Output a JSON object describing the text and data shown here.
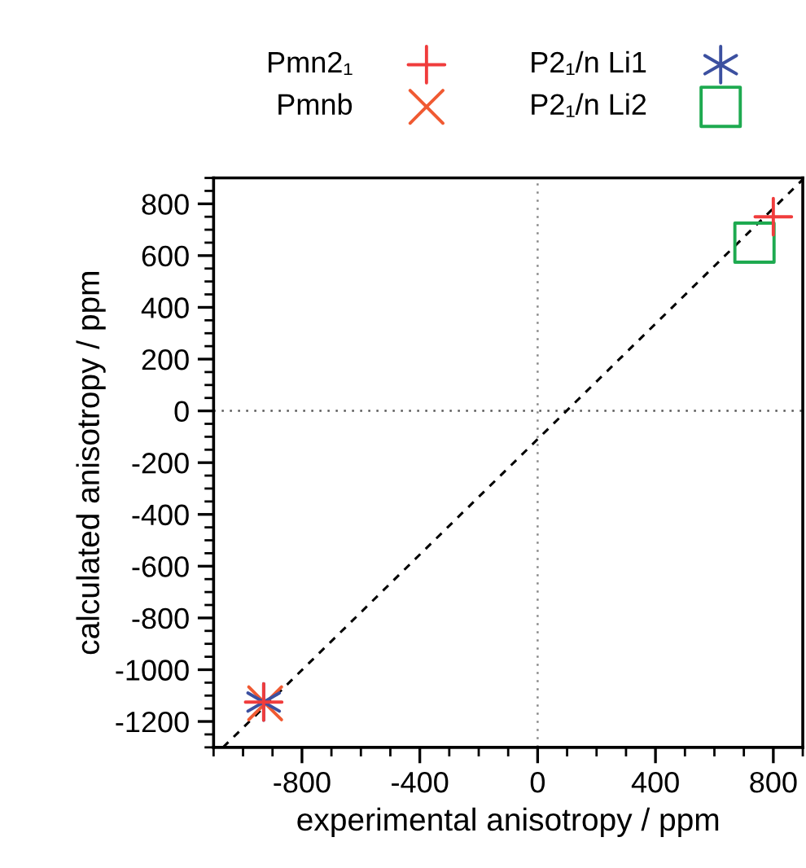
{
  "chart_data": {
    "type": "scatter",
    "xlabel": "experimental anisotropy / ppm",
    "ylabel": "calculated anisotropy / ppm",
    "xlim": [
      -1100,
      900
    ],
    "ylim": [
      -1300,
      900
    ],
    "xticks": [
      -800,
      -400,
      0,
      400,
      800
    ],
    "yticks": [
      -1200,
      -1000,
      -800,
      -600,
      -400,
      -200,
      0,
      200,
      400,
      600,
      800
    ],
    "grid": false,
    "legend": "top",
    "series": [
      {
        "name": "Pmn2₁",
        "color": "#f03c3c",
        "marker": "plus",
        "x": [
          800,
          -930
        ],
        "values": [
          750,
          -1125
        ]
      },
      {
        "name": "Pmnb",
        "color": "#f05a32",
        "marker": "cross",
        "x": [
          -925
        ],
        "values": [
          -1130
        ]
      },
      {
        "name": "P2₁/n Li1",
        "color": "#3c50a0",
        "x": [
          -930
        ],
        "values": [
          -1125
        ]
      },
      {
        "name": "P2₁/n Li2",
        "color": "#1eaa50",
        "marker": "square",
        "x": [
          736
        ],
        "values": [
          650
        ]
      },
      {
        "type": "line",
        "color": "#000000",
        "line_style": "dashed",
        "marker": "none",
        "x": [
          -1068,
          900
        ],
        "values": [
          -1300,
          894
        ]
      }
    ],
    "ref_lines": [
      {
        "axis": "x",
        "value": 0,
        "color": "#888888",
        "line_style": "dotted"
      },
      {
        "axis": "y",
        "value": 0,
        "color": "#555555",
        "line_style": "dotted"
      }
    ]
  }
}
